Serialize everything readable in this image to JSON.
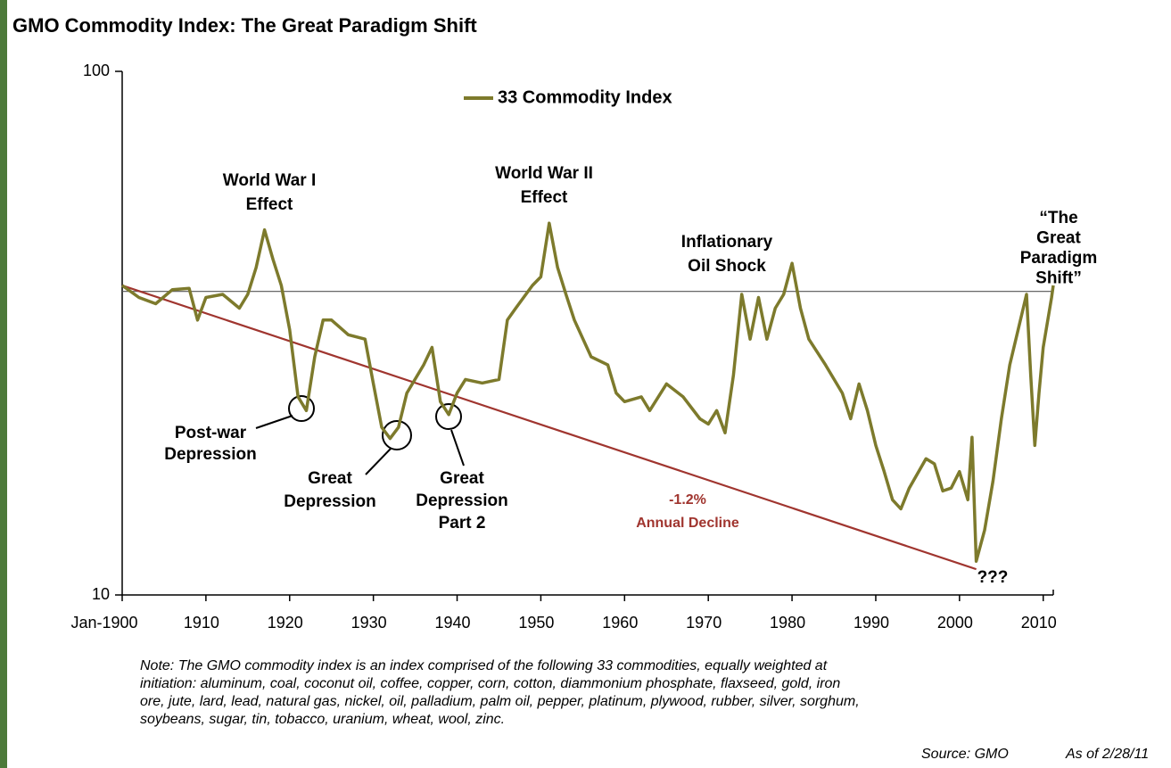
{
  "chart_data": {
    "type": "line",
    "title": "GMO Commodity Index:  The Great Paradigm Shift",
    "log_y": true,
    "xlim": [
      1900,
      2011.2
    ],
    "ylim": [
      10,
      100
    ],
    "yticks": [
      10,
      100
    ],
    "xticks": [
      {
        "value": 1900,
        "label": "Jan-1900"
      },
      1910,
      1920,
      1930,
      1940,
      1950,
      1960,
      1970,
      1980,
      1990,
      2000,
      2010
    ],
    "legend": "top",
    "series": [
      {
        "name": "33 Commodity Index",
        "color": "#7d7a2c",
        "x": [
          1900,
          1902,
          1904,
          1906,
          1908,
          1909,
          1910,
          1912,
          1914,
          1915,
          1916,
          1917,
          1918,
          1919,
          1920,
          1921,
          1922,
          1923,
          1924,
          1925,
          1927,
          1929,
          1930,
          1931,
          1932,
          1933,
          1934,
          1936,
          1937,
          1938,
          1939,
          1940,
          1941,
          1943,
          1945,
          1946,
          1947,
          1949,
          1950,
          1951,
          1952,
          1953,
          1954,
          1956,
          1958,
          1959,
          1960,
          1962,
          1963,
          1965,
          1967,
          1969,
          1970,
          1971,
          1972,
          1973,
          1974,
          1975,
          1976,
          1977,
          1978,
          1979,
          1980,
          1981,
          1982,
          1984,
          1986,
          1987,
          1988,
          1989,
          1990,
          1991,
          1992,
          1993,
          1994,
          1996,
          1997,
          1998,
          1999,
          2000,
          2001,
          2001.5,
          2002,
          2003,
          2004,
          2005,
          2006,
          2007,
          2008,
          2008.5,
          2009,
          2009.5,
          2010,
          2011,
          2011.2
        ],
        "values": [
          39,
          37,
          36,
          38.3,
          38.5,
          33.5,
          37,
          37.5,
          35.3,
          37.5,
          42.2,
          49.8,
          43.8,
          39,
          32.1,
          23.9,
          22.5,
          28.5,
          33.5,
          33.5,
          31.4,
          30.8,
          25.3,
          20.9,
          19.9,
          20.9,
          24.3,
          27.5,
          29.7,
          23.4,
          22.1,
          24.3,
          25.8,
          25.4,
          25.8,
          33.5,
          35.3,
          39,
          40.5,
          51.3,
          42.2,
          37.5,
          33.5,
          28.5,
          27.5,
          24.3,
          23.4,
          23.9,
          22.5,
          25.3,
          23.9,
          21.7,
          21.2,
          22.5,
          20.4,
          26.3,
          37.5,
          30.8,
          37,
          30.8,
          35.3,
          37.5,
          43,
          35.3,
          30.8,
          27.5,
          24.3,
          21.7,
          25.3,
          22.5,
          19.3,
          17.2,
          15.2,
          14.6,
          16.0,
          18.2,
          17.8,
          15.8,
          16.0,
          17.2,
          15.2,
          20.0,
          11.6,
          13.3,
          16.5,
          21.7,
          27.5,
          32.1,
          37.5,
          26.3,
          19.3,
          24.3,
          29.7,
          37,
          39
        ]
      }
    ],
    "reference_line": 38,
    "trend_line": {
      "color": "#a0352f",
      "x": [
        1900,
        2002
      ],
      "values": [
        39,
        11.2
      ]
    },
    "annotations": [
      {
        "lines": [
          "World War I",
          "Effect"
        ]
      },
      {
        "lines": [
          "World War II",
          "Effect"
        ]
      },
      {
        "lines": [
          "Inflationary",
          "Oil Shock"
        ]
      },
      {
        "lines": [
          "“The",
          "Great",
          "Paradigm",
          "Shift”"
        ]
      },
      {
        "lines": [
          "Post-war",
          "Depression"
        ]
      },
      {
        "lines": [
          "Great",
          "Depression"
        ]
      },
      {
        "lines": [
          "Great",
          "Depression",
          "Part 2"
        ]
      },
      {
        "lines": [
          "-1.2%",
          "Annual Decline"
        ]
      },
      {
        "lines": [
          "???"
        ]
      }
    ],
    "note": [
      "Note: The GMO commodity index is an index comprised of the following 33 commodities, equally weighted at",
      "initiation:  aluminum, coal, coconut oil, coffee, copper, corn, cotton, diammonium phosphate, flaxseed, gold, iron",
      "ore, jute, lard, lead, natural gas, nickel, oil, palladium, palm oil, pepper, platinum, plywood, rubber, silver, sorghum,",
      "soybeans, sugar, tin, tobacco, uranium, wheat, wool, zinc."
    ],
    "source": "Source:  GMO",
    "as_of": "As of 2/28/11"
  }
}
